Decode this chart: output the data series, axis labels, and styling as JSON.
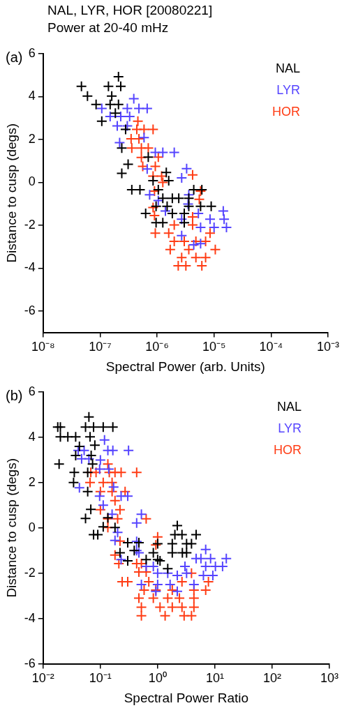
{
  "chart_data": [
    {
      "type": "scatter",
      "title": "NAL, LYR, HOR [20080221]",
      "subtitle": "Power at 20-40 mHz",
      "annotations": [
        "(a)"
      ],
      "xlabel": "Spectral Power (arb. Units)",
      "ylabel": "Distance to cusp (degs)",
      "log": "x",
      "grid": false,
      "legend": "top right",
      "marker": "cross",
      "xlim": [
        1e-08,
        0.001
      ],
      "xticks": [
        {
          "value": 1e-08,
          "label": "10⁻⁸"
        },
        {
          "value": 1e-07,
          "label": "10⁻⁷"
        },
        {
          "value": 1e-06,
          "label": "10⁻⁶"
        },
        {
          "value": 1e-05,
          "label": "10⁻⁵"
        },
        {
          "value": 0.0001,
          "label": "10⁻⁴"
        },
        {
          "value": 0.001,
          "label": "10⁻³"
        }
      ],
      "ylim": [
        -7,
        6
      ],
      "yticks": [
        -6,
        -4,
        -2,
        0,
        2,
        4,
        6
      ],
      "series": [
        {
          "name": "NAL",
          "color": "#000000",
          "x": [
            4.7e-08,
            6e-08,
            8.5e-08,
            1.07e-07,
            1.4e-07,
            1.6e-07,
            1.5e-07,
            2.1e-07,
            2.3e-07,
            2.1e-07,
            1.85e-07,
            2.4e-07,
            3.1e-07,
            2.4e-07,
            3.6e-07,
            5e-07,
            2.8e-07,
            6.3e-07,
            7e-07,
            8.5e-07,
            1.45e-06,
            1.6e-06,
            1.05e-06,
            1.26e-06,
            1.85e-06,
            2.4e-06,
            9.6e-07,
            1.5e-06,
            1.85e-06,
            9.6e-07,
            1.26e-06,
            4.4e-06,
            6.1e-06,
            5.8e-06,
            8.9e-06,
            3.6e-06,
            3.6e-06,
            3e-06,
            3e-06
          ],
          "values": [
            4.48,
            4.02,
            3.63,
            2.85,
            4.48,
            4.02,
            3.63,
            4.93,
            4.48,
            3.63,
            3.23,
            1.6,
            0.84,
            0.42,
            -0.34,
            -0.34,
            2.47,
            -1.45,
            1.18,
            0.08,
            0.46,
            0.08,
            -0.34,
            -0.74,
            -0.74,
            -0.74,
            -1.12,
            -1.12,
            -1.45,
            -1.88,
            -1.88,
            -0.34,
            -0.34,
            -1.12,
            -1.12,
            -0.74,
            -1.12,
            -1.45,
            -1.88
          ]
        },
        {
          "name": "LYR",
          "color": "#5544ff",
          "x": [
            1.07e-07,
            1.5e-07,
            3.9e-07,
            3e-07,
            4.8e-07,
            6.7e-07,
            2.3e-07,
            3.3e-07,
            2e-07,
            3e-07,
            2.2e-07,
            5.9e-07,
            9.3e-07,
            1.26e-06,
            2e-06,
            6.7e-07,
            3.3e-06,
            2.7e-06,
            7.4e-07,
            1.05e-06,
            1.4e-06,
            3.6e-06,
            3.5e-06,
            1.45e-05,
            1.5e-05,
            8.5e-06,
            1.65e-05,
            1e-05,
            5.8e-06,
            2.7e-06,
            2.7e-06,
            4.4e-06,
            5.8e-06,
            5.3e-06
          ],
          "values": [
            3.45,
            3.07,
            3.9,
            3.45,
            3.45,
            3.45,
            3.07,
            3.07,
            2.63,
            2.63,
            1.85,
            2.09,
            1.4,
            1.4,
            1.4,
            0.62,
            0.64,
            0.21,
            -0.58,
            -0.85,
            -1.34,
            -0.58,
            -1.01,
            -1.34,
            -1.72,
            -1.72,
            -2.1,
            -2.1,
            -2.1,
            -1.72,
            -2.48,
            -2.91,
            -2.86,
            -1.45
          ]
        },
        {
          "name": "HOR",
          "color": "#ff3c14",
          "x": [
            4.6e-07,
            4.4e-07,
            5.9e-07,
            8.5e-07,
            3.5e-07,
            4.8e-07,
            3.6e-07,
            5.3e-07,
            7e-07,
            5.3e-07,
            1.05e-06,
            5.6e-07,
            9.3e-07,
            8.5e-07,
            1.2e-06,
            1.26e-06,
            4.2e-06,
            9e-07,
            5.8e-06,
            5.5e-06,
            8.5e-07,
            9e-07,
            2e-06,
            9.3e-07,
            1.6e-06,
            2e-06,
            4.2e-06,
            4.2e-06,
            8.5e-06,
            7.1e-06,
            1.7e-06,
            3.6e-06,
            1.05e-05,
            2.7e-06,
            4.8e-06,
            7.1e-06,
            2.35e-06,
            3.2e-06,
            6.1e-06,
            4.8e-06,
            3e-06
          ],
          "values": [
            2.85,
            2.47,
            2.47,
            2.47,
            2.03,
            2.03,
            1.6,
            1.6,
            1.6,
            1.16,
            1.18,
            0.75,
            0.75,
            0.29,
            0.29,
            0,
            0.35,
            -0.41,
            -0.41,
            -0.79,
            -1.17,
            -1.55,
            -1.99,
            -2.37,
            -2.37,
            -2.75,
            -1.61,
            -1.99,
            -2.37,
            -2.75,
            -3.13,
            -3.13,
            -3.13,
            -3.51,
            -3.51,
            -3.51,
            -3.89,
            -3.89,
            -3.89,
            -2.75,
            -2.75
          ]
        }
      ]
    },
    {
      "type": "scatter",
      "annotations": [
        "(b)"
      ],
      "xlabel": "Spectral Power Ratio",
      "ylabel": "Distance to cusp (degs)",
      "log": "x",
      "grid": false,
      "legend": "top right",
      "marker": "cross",
      "xlim": [
        0.01,
        1000.0
      ],
      "xticks": [
        {
          "value": 0.01,
          "label": "10⁻²"
        },
        {
          "value": 0.1,
          "label": "10⁻¹"
        },
        {
          "value": 1,
          "label": "10⁰"
        },
        {
          "value": 10,
          "label": "10¹"
        },
        {
          "value": 100,
          "label": "10²"
        },
        {
          "value": 1000,
          "label": "10³"
        }
      ],
      "ylim": [
        -6,
        6
      ],
      "yticks": [
        -6,
        -4,
        -2,
        0,
        2,
        4,
        6
      ],
      "series": [
        {
          "name": "NAL",
          "color": "#000000",
          "x": [
            0.018,
            0.02,
            0.02,
            0.027,
            0.037,
            0.063,
            0.055,
            0.076,
            0.112,
            0.165,
            0.066,
            0.043,
            0.08,
            0.037,
            0.069,
            0.019,
            0.073,
            0.035,
            0.06,
            0.034,
            0.06,
            0.068,
            0.055,
            0.112,
            0.135,
            0.076,
            0.09,
            0.18,
            0.3,
            0.22,
            0.3,
            0.39,
            0.63,
            0.84,
            1.0,
            1.1,
            1.5,
            1.0,
            2.2,
            2.0,
            2.66,
            4.7,
            1.8,
            3.2,
            3.9,
            1.8,
            2.7,
            3.2,
            0.47
          ],
          "values": [
            4.45,
            4.45,
            4.02,
            4.02,
            4.02,
            4.9,
            4.45,
            4.45,
            4.45,
            4.45,
            4.02,
            3.6,
            3.65,
            3.2,
            3.2,
            2.82,
            2.82,
            2.45,
            2.45,
            2.0,
            1.6,
            0.82,
            0.42,
            0.05,
            0.45,
            -0.3,
            -0.3,
            0.02,
            -0.65,
            -1.1,
            -1.45,
            -1.0,
            -1.4,
            -1.1,
            -1.4,
            -1.45,
            -1.8,
            -0.7,
            0.1,
            -0.3,
            -0.3,
            -0.3,
            -0.7,
            -0.7,
            -0.7,
            -1.1,
            -1.1,
            -1.1,
            -0.65
          ]
        },
        {
          "name": "LYR",
          "color": "#5544ff",
          "x": [
            0.041,
            0.052,
            0.047,
            0.063,
            0.1,
            0.118,
            0.135,
            0.165,
            0.31,
            0.097,
            0.14,
            0.043,
            0.097,
            0.17,
            0.23,
            0.3,
            0.112,
            0.16,
            0.52,
            0.43,
            0.2,
            0.18,
            0.23,
            0.43,
            0.43,
            0.47,
            0.63,
            0.84,
            0.52,
            1.0,
            1.5,
            2.2,
            3.0,
            3.2,
            1.0,
            1.65,
            2.2,
            0.93,
            6.9,
            5.7,
            4.7,
            8.4,
            15.8,
            6.9,
            10.2,
            13.6,
            6.3,
            9.2,
            4.3
          ],
          "values": [
            3.42,
            3.42,
            3.05,
            3.05,
            3.0,
            3.88,
            3.42,
            3.42,
            3.42,
            2.6,
            2.6,
            1.77,
            1.4,
            1.8,
            1.4,
            1.4,
            1.0,
            0.6,
            0.6,
            0.22,
            -0.2,
            -0.55,
            -1.4,
            -0.6,
            -1.0,
            -1.1,
            -1.7,
            -1.7,
            -2.5,
            -2.0,
            -2.0,
            -2.1,
            -1.7,
            -2.0,
            -2.5,
            -2.5,
            -2.8,
            -2.8,
            -0.95,
            -1.35,
            -1.35,
            -1.35,
            -1.35,
            -1.7,
            -1.7,
            -1.7,
            -2.1,
            -2.1,
            -2.5
          ]
        },
        {
          "name": "HOR",
          "color": "#ff3c14",
          "x": [
            0.135,
            0.068,
            0.084,
            0.143,
            0.18,
            0.23,
            0.43,
            0.066,
            0.112,
            0.16,
            0.1,
            0.16,
            0.27,
            0.18,
            0.1,
            0.22,
            0.135,
            0.2,
            0.135,
            0.63,
            1.0,
            0.93,
            0.22,
            0.18,
            0.21,
            0.43,
            0.52,
            0.47,
            0.63,
            0.24,
            0.3,
            0.7,
            2.66,
            3.9,
            7.7,
            0.58,
            0.93,
            1.8,
            4.3,
            6.9,
            0.47,
            0.84,
            1.5,
            2.4,
            4.3,
            0.52,
            1.1,
            1.8,
            2.66,
            4.3,
            0.52,
            1.35,
            2.9,
            3.9
          ],
          "values": [
            2.82,
            2.45,
            2.45,
            2.45,
            2.45,
            2.45,
            2.45,
            2.0,
            2.0,
            2.0,
            1.6,
            1.6,
            1.6,
            1.2,
            0.8,
            0.8,
            0.4,
            0.4,
            0.02,
            0.4,
            -0.4,
            -0.75,
            -0.58,
            -1.2,
            -1.58,
            -1.58,
            -1.58,
            -1.95,
            -1.95,
            -2.38,
            -2.38,
            -2.38,
            -2.38,
            -2.0,
            -2.38,
            -2.75,
            -2.75,
            -2.75,
            -2.75,
            -2.75,
            -3.1,
            -3.1,
            -3.1,
            -3.1,
            -3.1,
            -3.5,
            -3.5,
            -3.5,
            -3.5,
            -3.5,
            -3.88,
            -3.88,
            -3.88,
            -3.88
          ]
        }
      ]
    }
  ]
}
